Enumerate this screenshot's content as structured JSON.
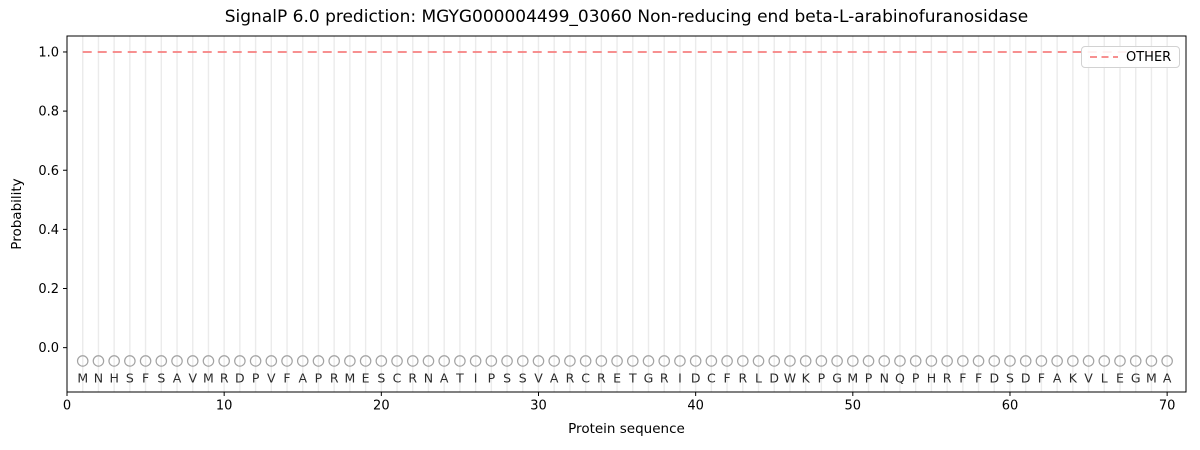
{
  "chart_data": {
    "type": "line",
    "title": "SignalP 6.0 prediction: MGYG000004499_03060 Non-reducing end beta-L-arabinofuranosidase",
    "xlabel": "Protein sequence",
    "ylabel": "Probability",
    "xlim": [
      0,
      71.2
    ],
    "ylim": [
      -0.15,
      1.054
    ],
    "xticks": [
      0,
      10,
      20,
      30,
      40,
      50,
      60,
      70
    ],
    "yticks": [
      0.0,
      0.2,
      0.4,
      0.6,
      0.8,
      1.0
    ],
    "grid": {
      "vertical_line_per_residue": true,
      "horizontal": false
    },
    "sequence": "MNHSFSAVMRDPVFAPRMESCRNATIPSSVARCRETGRIDCFRLDWKPGMPNQPHRFFDSDFAKVLEGMA",
    "series": [
      {
        "name": "OTHER",
        "style": "dashed",
        "color": "#f68181",
        "x_start": 1,
        "x_end": 70,
        "constant_y": 1.0
      }
    ],
    "residue_markers": {
      "shape": "open-circle",
      "y": -0.045,
      "color": "#a3a3a3"
    },
    "residue_letters_y": -0.102,
    "legend": {
      "position": "upper-right",
      "entries": [
        {
          "label": "OTHER",
          "style": "dashed",
          "color": "#f68181"
        }
      ]
    },
    "colors": {
      "background": "#ffffff",
      "spine": "#000000",
      "grid": "#ebebeb",
      "letters": "#2a2a2a",
      "markers": "#a3a3a3",
      "tick_labels": "#000000",
      "legend_border": "#d2d2d2"
    }
  }
}
